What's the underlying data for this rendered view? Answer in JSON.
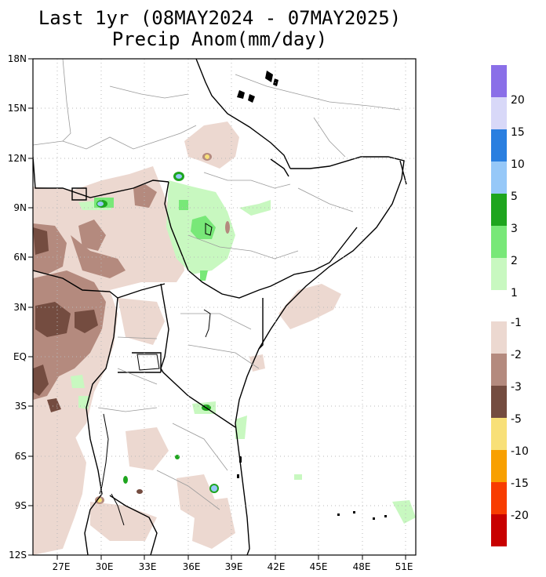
{
  "title": {
    "line1": "Last 1yr (08MAY2024 - 07MAY2025)",
    "line2": "Precip Anom(mm/day)"
  },
  "axes": {
    "lat_labels": [
      "18N",
      "15N",
      "12N",
      "9N",
      "6N",
      "3N",
      "EQ",
      "3S",
      "6S",
      "9S",
      "12S"
    ],
    "lon_labels": [
      "27E",
      "30E",
      "33E",
      "36E",
      "39E",
      "42E",
      "45E",
      "48E",
      "51E"
    ]
  },
  "colorbar": {
    "positive": {
      "labels": [
        "20",
        "15",
        "10",
        "5",
        "3",
        "2",
        "1"
      ],
      "colors": [
        "#8a6fe8",
        "#d8d8f8",
        "#2a7fe0",
        "#96c8f8",
        "#1ea51e",
        "#78e878",
        "#c8f8c0"
      ]
    },
    "negative": {
      "labels": [
        "-1",
        "-2",
        "-3",
        "-5",
        "-10",
        "-15",
        "-20"
      ],
      "colors": [
        "#ecd8d0",
        "#b48a7e",
        "#744c40",
        "#f8e078",
        "#f8a000",
        "#f83c00",
        "#c80000"
      ]
    }
  }
}
